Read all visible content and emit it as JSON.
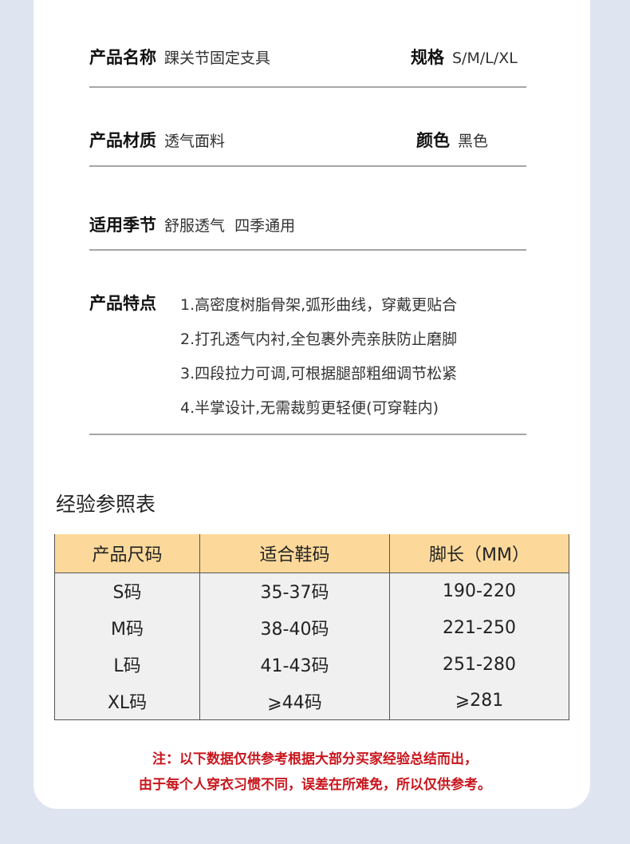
{
  "info": {
    "name_label": "产品名称",
    "name_value": "踝关节固定支具",
    "spec_label": "规格",
    "spec_value": "S/M/L/XL",
    "material_label": "产品材质",
    "material_value": "透气面料",
    "color_label": "颜色",
    "color_value": "黑色",
    "season_label": "适用季节",
    "season_value": "舒服透气  四季通用",
    "features_label": "产品特点",
    "features": [
      "1.高密度树脂骨架,弧形曲线，穿戴更贴合",
      "2.打孔透气内衬,全包裹外壳亲肤防止磨脚",
      "3.四段拉力可调,可根据腿部粗细调节松紧",
      "4.半掌设计,无需裁剪更轻便(可穿鞋内)"
    ]
  },
  "size_table": {
    "title": "经验参照表",
    "headers": [
      "产品尺码",
      "适合鞋码",
      "脚长（MM）"
    ],
    "rows": [
      [
        "S码",
        "35-37码",
        "190-220"
      ],
      [
        "M码",
        "38-40码",
        "221-250"
      ],
      [
        "L码",
        "41-43码",
        "251-280"
      ],
      [
        "XL码",
        "⩾44码",
        "⩾281"
      ]
    ]
  },
  "note": [
    "注：以下数据仅供参考根据大部分买家经验总结而出，",
    "由于每个人穿衣习惯不同，误差在所难免，所以仅供参考。"
  ],
  "colors": {
    "header_bg": "#fcd99b",
    "note": "#c8161d",
    "background": "#dfe4f1"
  }
}
